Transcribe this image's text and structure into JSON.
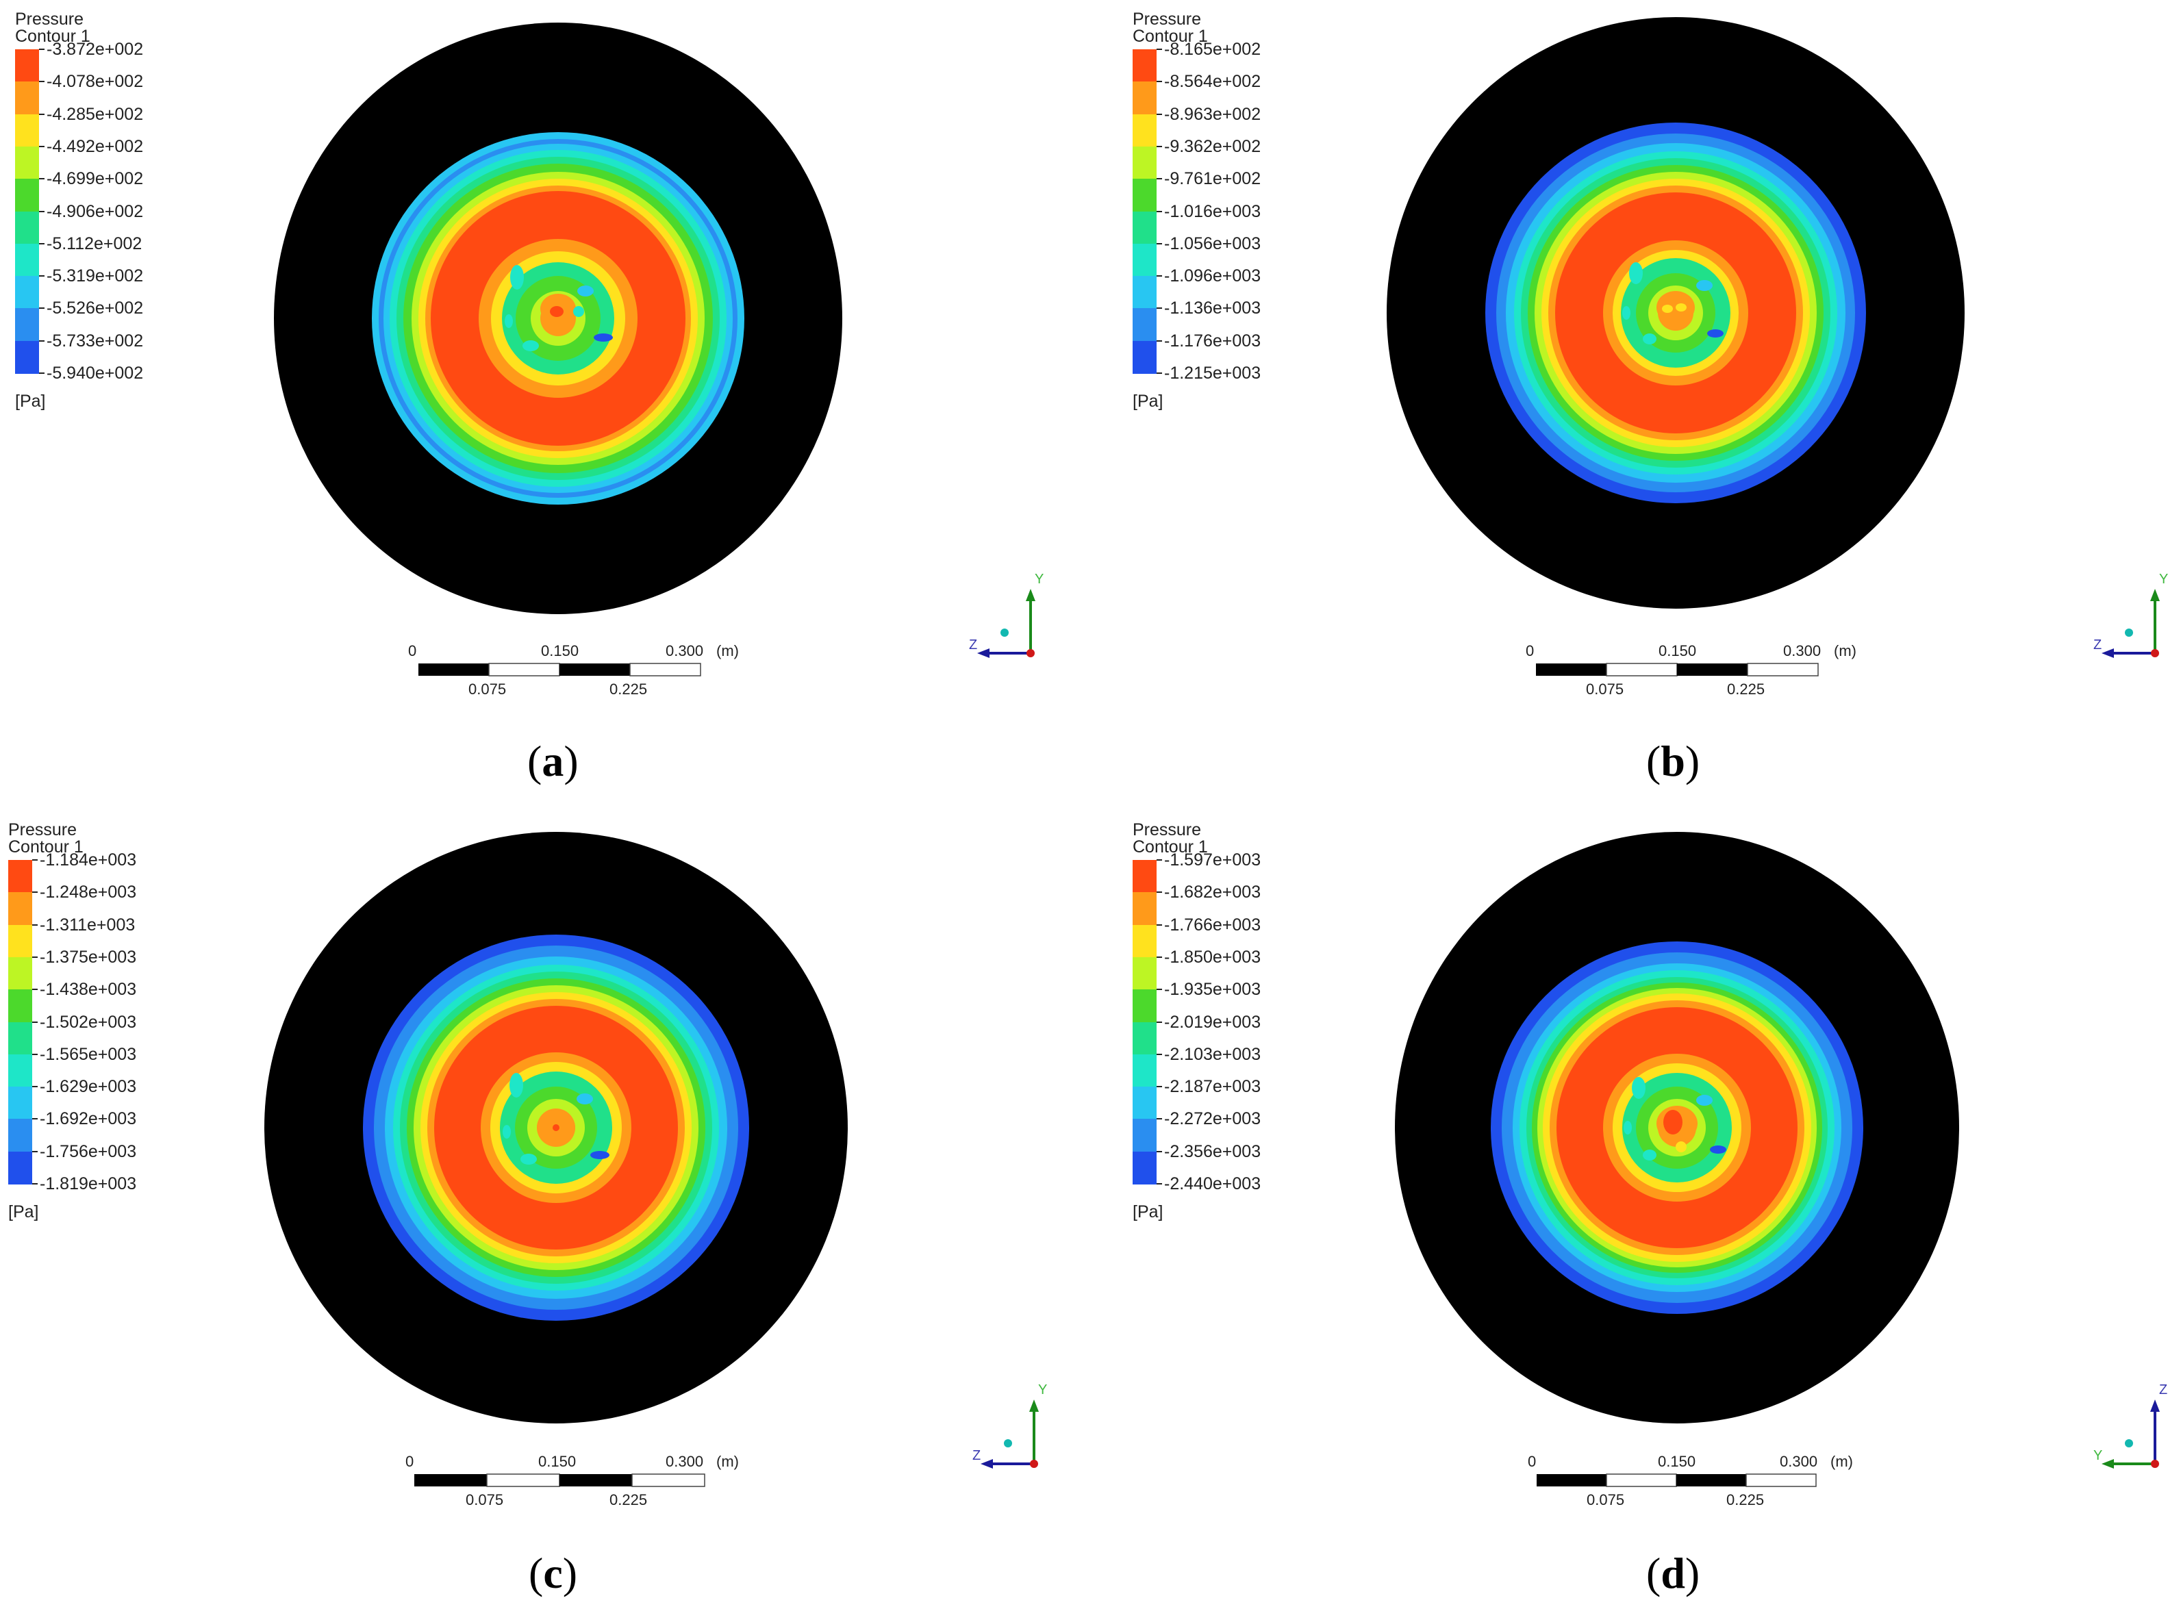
{
  "panels": [
    {
      "id": "a",
      "caption_open": "(",
      "caption_letter": "a",
      "caption_close": ")",
      "legend": {
        "title_line1": "Pressure",
        "title_line2": "Contour 1",
        "unit": "[Pa]",
        "labels": [
          "-3.872e+002",
          "-4.078e+002",
          "-4.285e+002",
          "-4.492e+002",
          "-4.699e+002",
          "-4.906e+002",
          "-5.112e+002",
          "-5.319e+002",
          "-5.526e+002",
          "-5.733e+002",
          "-5.940e+002"
        ]
      },
      "scale": {
        "top_labels": [
          "0",
          "0.150",
          "0.300"
        ],
        "unit": "(m)",
        "bottom_labels": [
          "0.075",
          "0.225"
        ]
      },
      "axes": {
        "vertical": "Y",
        "horizontal": "Z"
      }
    },
    {
      "id": "b",
      "caption_open": "(",
      "caption_letter": "b",
      "caption_close": ")",
      "legend": {
        "title_line1": "Pressure",
        "title_line2": "Contour 1",
        "unit": "[Pa]",
        "labels": [
          "-8.165e+002",
          "-8.564e+002",
          "-8.963e+002",
          "-9.362e+002",
          "-9.761e+002",
          "-1.016e+003",
          "-1.056e+003",
          "-1.096e+003",
          "-1.136e+003",
          "-1.176e+003",
          "-1.215e+003"
        ]
      },
      "scale": {
        "top_labels": [
          "0",
          "0.150",
          "0.300"
        ],
        "unit": "(m)",
        "bottom_labels": [
          "0.075",
          "0.225"
        ]
      },
      "axes": {
        "vertical": "Y",
        "horizontal": "Z"
      }
    },
    {
      "id": "c",
      "caption_open": "(",
      "caption_letter": "c",
      "caption_close": ")",
      "legend": {
        "title_line1": "Pressure",
        "title_line2": "Contour 1",
        "unit": "[Pa]",
        "labels": [
          "-1.184e+003",
          "-1.248e+003",
          "-1.311e+003",
          "-1.375e+003",
          "-1.438e+003",
          "-1.502e+003",
          "-1.565e+003",
          "-1.629e+003",
          "-1.692e+003",
          "-1.756e+003",
          "-1.819e+003"
        ]
      },
      "scale": {
        "top_labels": [
          "0",
          "0.150",
          "0.300"
        ],
        "unit": "(m)",
        "bottom_labels": [
          "0.075",
          "0.225"
        ]
      },
      "axes": {
        "vertical": "Y",
        "horizontal": "Z"
      }
    },
    {
      "id": "d",
      "caption_open": "(",
      "caption_letter": "d",
      "caption_close": ")",
      "legend": {
        "title_line1": "Pressure",
        "title_line2": "Contour 1",
        "unit": "[Pa]",
        "labels": [
          "-1.597e+003",
          "-1.682e+003",
          "-1.766e+003",
          "-1.850e+003",
          "-1.935e+003",
          "-2.019e+003",
          "-2.103e+003",
          "-2.187e+003",
          "-2.272e+003",
          "-2.356e+003",
          "-2.440e+003"
        ]
      },
      "scale": {
        "top_labels": [
          "0",
          "0.150",
          "0.300"
        ],
        "unit": "(m)",
        "bottom_labels": [
          "0.075",
          "0.225"
        ]
      },
      "axes": {
        "vertical": "Z",
        "horizontal": "Y"
      }
    }
  ],
  "colormap": [
    "#ff4a12",
    "#ff9a1a",
    "#ffe21e",
    "#bdf524",
    "#4cd92c",
    "#20e08a",
    "#1ee6c8",
    "#28c6f2",
    "#2a8ef0",
    "#2050ec",
    "#1424d8"
  ],
  "background_disk_color": "#000000"
}
